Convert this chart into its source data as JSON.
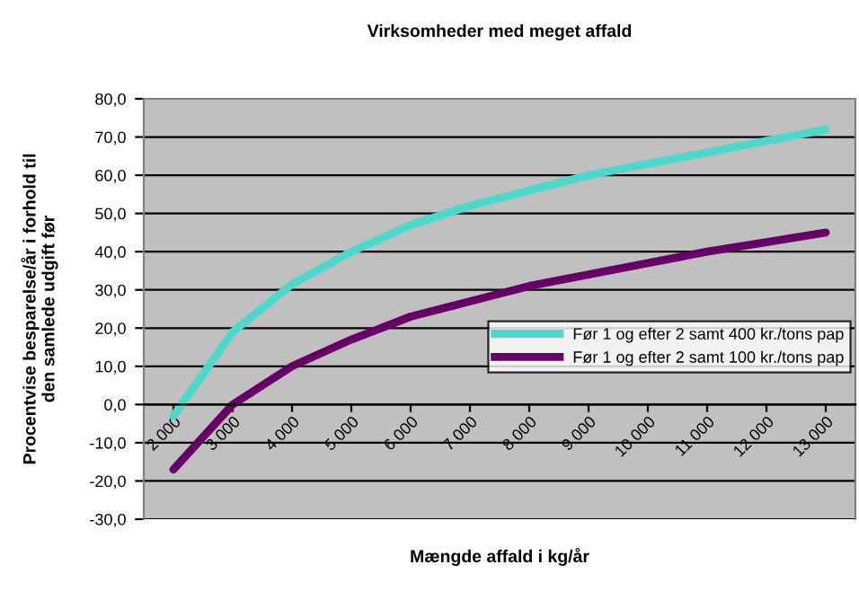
{
  "chart_data": {
    "type": "line",
    "title": "Virksomheder med meget affald",
    "xlabel": "Mængde affald i kg/år",
    "ylabel": "Procentvise besparelse/år i forhold til\nden samlede udgift før",
    "categories": [
      "2.000",
      "3.000",
      "4.000",
      "5.000",
      "6.000",
      "7.000",
      "8.000",
      "9.000",
      "10.000",
      "11.000",
      "12.000",
      "13.000"
    ],
    "series": [
      {
        "name": "Før 1 og efter 2 samt 400 kr./tons pap",
        "color": "#4dd8cc",
        "values": [
          -3,
          19,
          31.5,
          40,
          47,
          52,
          56,
          60,
          63,
          66,
          69,
          72
        ]
      },
      {
        "name": "Før 1 og efter 2 samt 100 kr./tons pap",
        "color": "#660066",
        "values": [
          -17,
          0,
          10,
          17,
          23,
          27,
          31,
          34,
          37,
          40,
          42.5,
          45
        ]
      }
    ],
    "ylim": [
      -30,
      80
    ],
    "yticks": [
      {
        "value": -30,
        "label": "-30,0"
      },
      {
        "value": -20,
        "label": "-20,0"
      },
      {
        "value": -10,
        "label": "-10,0"
      },
      {
        "value": 0,
        "label": "0,0"
      },
      {
        "value": 10,
        "label": "10,0"
      },
      {
        "value": 20,
        "label": "20,0"
      },
      {
        "value": 30,
        "label": "30,0"
      },
      {
        "value": 40,
        "label": "40,0"
      },
      {
        "value": 50,
        "label": "50,0"
      },
      {
        "value": 60,
        "label": "60,0"
      },
      {
        "value": 70,
        "label": "70,0"
      },
      {
        "value": 80,
        "label": "80,0"
      }
    ],
    "grid": "y",
    "legend": "center right",
    "marker": "none",
    "line_style": "solid"
  }
}
